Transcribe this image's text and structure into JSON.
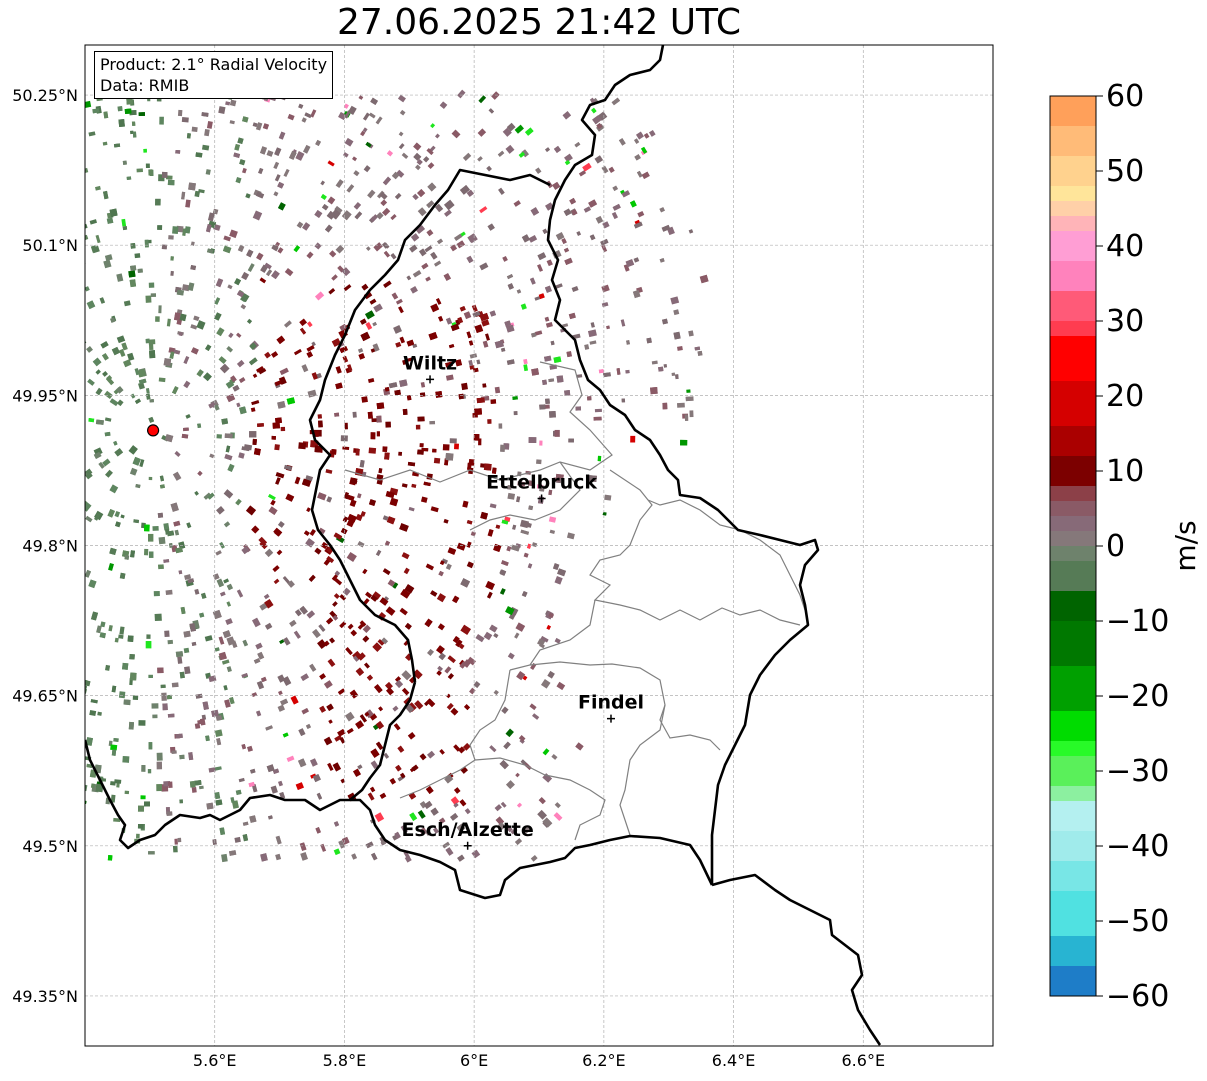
{
  "title": "27.06.2025 21:42 UTC",
  "info": {
    "product": "Product: 2.1° Radial Velocity",
    "data_source": "Data: RMIB"
  },
  "map": {
    "lon_range": [
      5.4,
      6.8
    ],
    "lat_range": [
      49.3,
      50.3
    ],
    "lat_ticks": [
      {
        "value": 50.25,
        "label": "50.25°N"
      },
      {
        "value": 50.1,
        "label": "50.1°N"
      },
      {
        "value": 49.95,
        "label": "49.95°N"
      },
      {
        "value": 49.8,
        "label": "49.8°N"
      },
      {
        "value": 49.65,
        "label": "49.65°N"
      },
      {
        "value": 49.5,
        "label": "49.5°N"
      },
      {
        "value": 49.35,
        "label": "49.35°N"
      }
    ],
    "lon_ticks": [
      {
        "value": 5.6,
        "label": "5.6°E"
      },
      {
        "value": 5.8,
        "label": "5.8°E"
      },
      {
        "value": 6.0,
        "label": "6°E"
      },
      {
        "value": 6.2,
        "label": "6.2°E"
      },
      {
        "value": 6.4,
        "label": "6.4°E"
      },
      {
        "value": 6.6,
        "label": "6.6°E"
      }
    ],
    "grid": true,
    "radar_site": {
      "lon": 5.505,
      "lat": 49.915
    },
    "cities": [
      {
        "name": "Wiltz",
        "lon": 5.932,
        "lat": 49.966
      },
      {
        "name": "Ettelbruck",
        "lon": 6.104,
        "lat": 49.847
      },
      {
        "name": "Findel",
        "lon": 6.211,
        "lat": 49.627
      },
      {
        "name": "Esch/Alzette",
        "lon": 5.99,
        "lat": 49.5
      }
    ]
  },
  "colorbar": {
    "label": "m/s",
    "min": -60,
    "max": 60,
    "ticks": [
      {
        "value": 60,
        "label": "60"
      },
      {
        "value": 50,
        "label": "50"
      },
      {
        "value": 40,
        "label": "40"
      },
      {
        "value": 30,
        "label": "30"
      },
      {
        "value": 20,
        "label": "20"
      },
      {
        "value": 10,
        "label": "10"
      },
      {
        "value": 0,
        "label": "0"
      },
      {
        "value": -10,
        "label": "−10"
      },
      {
        "value": -20,
        "label": "−20"
      },
      {
        "value": -30,
        "label": "−30"
      },
      {
        "value": -40,
        "label": "−40"
      },
      {
        "value": -50,
        "label": "−50"
      },
      {
        "value": -60,
        "label": "−60"
      }
    ],
    "bands": [
      {
        "from": 56,
        "to": 60,
        "color": "#ffa05a"
      },
      {
        "from": 52,
        "to": 56,
        "color": "#ffbb78"
      },
      {
        "from": 48,
        "to": 52,
        "color": "#ffd28e"
      },
      {
        "from": 46,
        "to": 48,
        "color": "#ffe59a"
      },
      {
        "from": 44,
        "to": 46,
        "color": "#ffd0a8"
      },
      {
        "from": 42,
        "to": 44,
        "color": "#ffb4b8"
      },
      {
        "from": 38,
        "to": 42,
        "color": "#ff9ed4"
      },
      {
        "from": 34,
        "to": 38,
        "color": "#ff82bc"
      },
      {
        "from": 30,
        "to": 34,
        "color": "#ff5a78"
      },
      {
        "from": 28,
        "to": 30,
        "color": "#ff3c50"
      },
      {
        "from": 22,
        "to": 28,
        "color": "#ff0000"
      },
      {
        "from": 16,
        "to": 22,
        "color": "#d50000"
      },
      {
        "from": 12,
        "to": 16,
        "color": "#aa0000"
      },
      {
        "from": 8,
        "to": 12,
        "color": "#7c0000"
      },
      {
        "from": 6,
        "to": 8,
        "color": "#8c4048"
      },
      {
        "from": 4,
        "to": 6,
        "color": "#8a5a66"
      },
      {
        "from": 2,
        "to": 4,
        "color": "#876a78"
      },
      {
        "from": 0,
        "to": 2,
        "color": "#85787a"
      },
      {
        "from": -2,
        "to": 0,
        "color": "#6e826c"
      },
      {
        "from": -6,
        "to": -2,
        "color": "#567b56"
      },
      {
        "from": -10,
        "to": -6,
        "color": "#006400"
      },
      {
        "from": -16,
        "to": -10,
        "color": "#007800"
      },
      {
        "from": -22,
        "to": -16,
        "color": "#00a000"
      },
      {
        "from": -26,
        "to": -22,
        "color": "#00dc00"
      },
      {
        "from": -28,
        "to": -26,
        "color": "#28fa28"
      },
      {
        "from": -32,
        "to": -28,
        "color": "#5af05a"
      },
      {
        "from": -34,
        "to": -32,
        "color": "#8cf0a0"
      },
      {
        "from": -38,
        "to": -34,
        "color": "#b4f0f0"
      },
      {
        "from": -42,
        "to": -38,
        "color": "#a0ebeb"
      },
      {
        "from": -46,
        "to": -42,
        "color": "#78e6e6"
      },
      {
        "from": -52,
        "to": -46,
        "color": "#50e1e1"
      },
      {
        "from": -56,
        "to": -52,
        "color": "#28b4d2"
      },
      {
        "from": -60,
        "to": -56,
        "color": "#1e7dc8"
      }
    ]
  }
}
